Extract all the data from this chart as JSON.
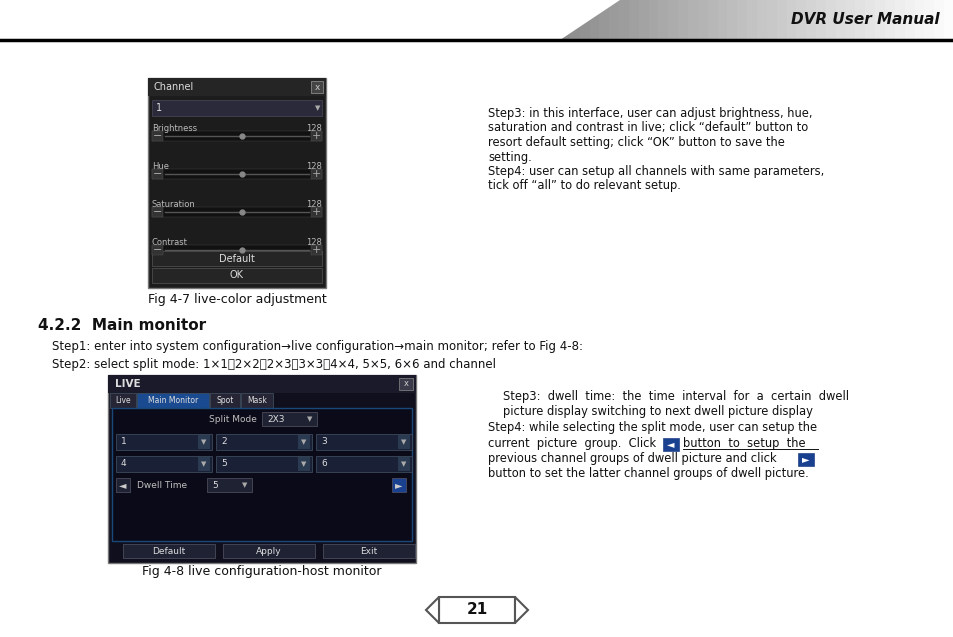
{
  "background_color": "#ffffff",
  "header_text": "DVR User Manual",
  "page_number": "21",
  "section_title": "4.2.2  Main monitor",
  "step1_text": "Step1: enter into system configuration→live configuration→main monitor; refer to Fig 4-8:",
  "step2_text": "Step2: select split mode: 1×1、2×2、2×3、3×3、4×4, 5×5, 6×6 and channel",
  "fig47_caption": "Fig 4-7 live-color adjustment",
  "fig48_caption": "Fig 4-8 live configuration-host monitor",
  "right_text_top": [
    "Step3: in this interface, user can adjust brightness, hue,",
    "saturation and contrast in live; click “default” button to",
    "resort default setting; click “OK” button to save the",
    "setting.",
    "Step4: user can setup all channels with same parameters,",
    "tick off “all” to do relevant setup."
  ],
  "right_text_b0": "Step3:  dwell  time:  the  time  interval  for  a  certain  dwell",
  "right_text_b1": "picture display switching to next dwell picture display",
  "right_text_b2": "Step4: while selecting the split mode, user can setup the",
  "right_text_b3a": "current  picture  group.  Click",
  "right_text_b3b": "button  to  setup  the",
  "right_text_b4a": "previous channel groups of dwell picture and click",
  "right_text_b5": "button to set the latter channel groups of dwell picture."
}
